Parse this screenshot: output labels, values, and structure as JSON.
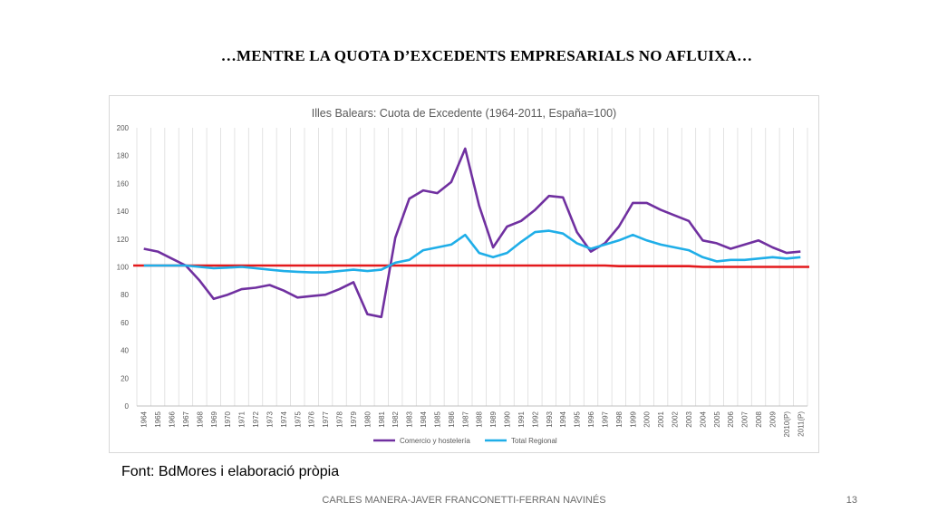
{
  "slide": {
    "title": "…MENTRE LA QUOTA D’EXCEDENTS EMPRESARIALS NO AFLUIXA…",
    "source": "Font: BdMores i elaboració pròpia",
    "footer": "CARLES MANERA-JAVER FRANCONETTI-FERRAN NAVINÉS",
    "page_number": "13"
  },
  "chart_data": {
    "type": "line",
    "title": "Illes Balears: Cuota de Excedente (1964-2011, España=100)",
    "xlabel": "",
    "ylabel": "",
    "ylim": [
      0,
      200
    ],
    "yticks": [
      0,
      20,
      40,
      60,
      80,
      100,
      120,
      140,
      160,
      180,
      200
    ],
    "grid": "vertical",
    "legend": "bottom",
    "categories": [
      "1964",
      "1965",
      "1966",
      "1967",
      "1968",
      "1969",
      "1970",
      "1971",
      "1972",
      "1973",
      "1974",
      "1975",
      "1976",
      "1977",
      "1978",
      "1979",
      "1980",
      "1981",
      "1982",
      "1983",
      "1984",
      "1985",
      "1986",
      "1987",
      "1988",
      "1989",
      "1990",
      "1991",
      "1992",
      "1993",
      "1994",
      "1995",
      "1996",
      "1997",
      "1998",
      "1999",
      "2000",
      "2001",
      "2002",
      "2003",
      "2004",
      "2005",
      "2006",
      "2007",
      "2008",
      "2009",
      "2010(P)",
      "2011(P)"
    ],
    "series": [
      {
        "name": "Comercio y hostelería",
        "color": "#7030a0",
        "values": [
          113,
          111,
          106,
          101,
          90,
          77,
          80,
          84,
          85,
          87,
          83,
          78,
          79,
          80,
          84,
          89,
          66,
          64,
          121,
          149,
          155,
          153,
          161,
          185,
          144,
          114,
          129,
          133,
          141,
          151,
          150,
          125,
          111,
          117,
          129,
          146,
          146,
          141,
          137,
          133,
          119,
          117,
          113,
          116,
          119,
          114,
          110,
          111
        ]
      },
      {
        "name": "Total Regional",
        "color": "#1faee8",
        "values": [
          101,
          101,
          101,
          101,
          100,
          99,
          99.5,
          100,
          99,
          98,
          97,
          96.5,
          96,
          96,
          97,
          98,
          97,
          98,
          103,
          105,
          112,
          114,
          116,
          123,
          110,
          107,
          110,
          118,
          125,
          126,
          124,
          117,
          113,
          116,
          119,
          123,
          119,
          116,
          114,
          112,
          107,
          104,
          105,
          105,
          106,
          107,
          106,
          107
        ]
      },
      {
        "name": "",
        "color": "#e3191c",
        "values": [
          101,
          101,
          101,
          101,
          101,
          101,
          101,
          101,
          101,
          101,
          101,
          101,
          101,
          101,
          101,
          101,
          101,
          101,
          101,
          101,
          101,
          101,
          101,
          101,
          101,
          101,
          101,
          101,
          101,
          101,
          101,
          101,
          101,
          101,
          100.5,
          100.5,
          100.5,
          100.5,
          100.5,
          100.5,
          100,
          100,
          100,
          100,
          100,
          100,
          100,
          100
        ]
      }
    ]
  }
}
